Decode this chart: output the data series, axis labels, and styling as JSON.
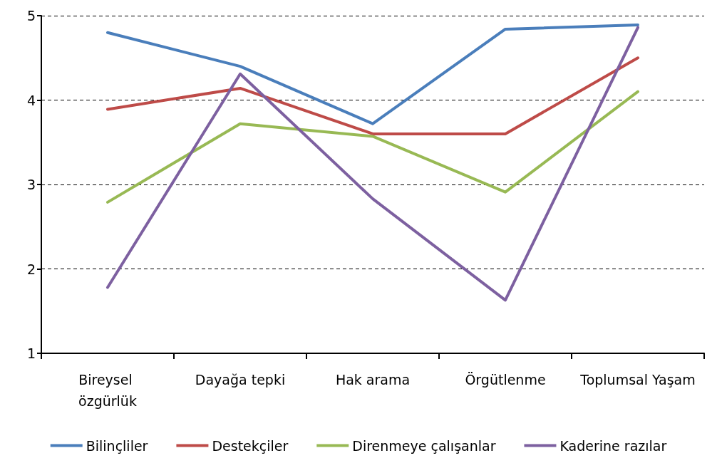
{
  "chart_data": {
    "type": "line",
    "categories": [
      "Bireysel özgürlük",
      "Dayağa tepki",
      "Hak arama",
      "Örgütlenme",
      "Toplumsal Yaşam"
    ],
    "series": [
      {
        "name": "Bilinçliler",
        "color": "#4a7ebb",
        "values": [
          4.8,
          4.4,
          3.72,
          4.84,
          4.89
        ]
      },
      {
        "name": "Destekçiler",
        "color": "#be4b48",
        "values": [
          3.89,
          4.14,
          3.6,
          3.6,
          4.5
        ]
      },
      {
        "name": "Direnmeye çalışanlar",
        "color": "#98b954",
        "values": [
          2.79,
          3.72,
          3.57,
          2.91,
          4.1
        ]
      },
      {
        "name": "Kaderine razılar",
        "color": "#7d60a0",
        "values": [
          1.78,
          4.31,
          2.83,
          1.63,
          4.86
        ]
      }
    ],
    "ylim": [
      1,
      5
    ],
    "yticks": [
      1,
      2,
      3,
      4,
      5
    ],
    "grid": "y",
    "legend": "bottom",
    "marker": "none",
    "line_style": "solid"
  }
}
